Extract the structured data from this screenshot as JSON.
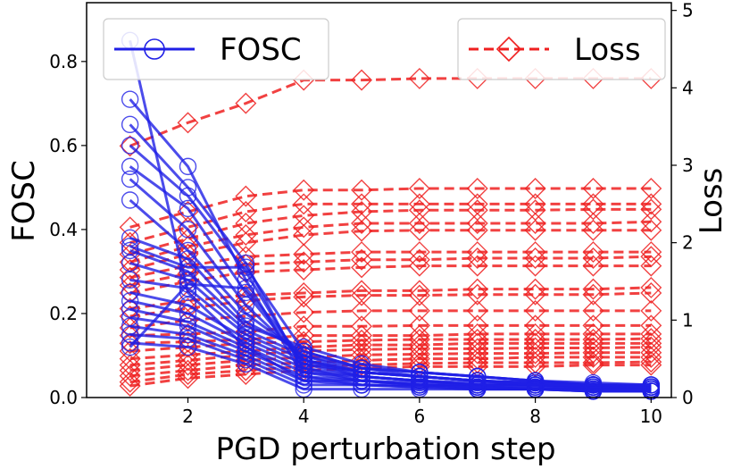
{
  "chart_data": {
    "type": "line",
    "xlabel": "PGD perturbation step",
    "ylabel_left": "FOSC",
    "ylabel_right": "Loss",
    "x": [
      1,
      2,
      3,
      4,
      5,
      6,
      7,
      8,
      9,
      10
    ],
    "x_ticks": [
      "2",
      "4",
      "6",
      "8",
      "10"
    ],
    "x_tick_values": [
      2,
      4,
      6,
      8,
      10
    ],
    "xlim": [
      0.25,
      10.35
    ],
    "ylim_left": [
      0,
      0.94
    ],
    "ylim_right": [
      0,
      5.1
    ],
    "y_ticks_left": [
      "0.0",
      "0.2",
      "0.4",
      "0.6",
      "0.8"
    ],
    "y_tick_values_left": [
      0,
      0.2,
      0.4,
      0.6,
      0.8
    ],
    "y_ticks_right": [
      "0",
      "1",
      "2",
      "3",
      "4",
      "5"
    ],
    "y_tick_values_right": [
      0,
      1,
      2,
      3,
      4,
      5
    ],
    "colors": {
      "fosc": "#1f1fe6",
      "loss": "#ef2020"
    },
    "legend": [
      {
        "label": "FOSC",
        "style": "solid line with circle markers",
        "position": "top-left"
      },
      {
        "label": "Loss",
        "style": "dashed line with diamond markers",
        "position": "top-right"
      }
    ],
    "fosc_series": [
      [
        0.85,
        0.25,
        0.12,
        0.04,
        0.03,
        0.025,
        0.02,
        0.02,
        0.015,
        0.015
      ],
      [
        0.71,
        0.55,
        0.28,
        0.05,
        0.03,
        0.025,
        0.02,
        0.02,
        0.015,
        0.015
      ],
      [
        0.65,
        0.5,
        0.32,
        0.06,
        0.04,
        0.03,
        0.025,
        0.02,
        0.02,
        0.02
      ],
      [
        0.6,
        0.48,
        0.3,
        0.07,
        0.04,
        0.03,
        0.025,
        0.02,
        0.02,
        0.02
      ],
      [
        0.55,
        0.45,
        0.25,
        0.08,
        0.05,
        0.04,
        0.03,
        0.03,
        0.02,
        0.02
      ],
      [
        0.52,
        0.4,
        0.22,
        0.09,
        0.05,
        0.04,
        0.03,
        0.03,
        0.025,
        0.02
      ],
      [
        0.47,
        0.35,
        0.2,
        0.1,
        0.06,
        0.05,
        0.04,
        0.03,
        0.025,
        0.025
      ],
      [
        0.38,
        0.33,
        0.18,
        0.11,
        0.07,
        0.05,
        0.04,
        0.035,
        0.03,
        0.025
      ],
      [
        0.35,
        0.3,
        0.17,
        0.12,
        0.08,
        0.06,
        0.05,
        0.04,
        0.03,
        0.03
      ],
      [
        0.32,
        0.28,
        0.16,
        0.1,
        0.07,
        0.06,
        0.05,
        0.04,
        0.03,
        0.03
      ],
      [
        0.28,
        0.26,
        0.15,
        0.09,
        0.06,
        0.05,
        0.04,
        0.035,
        0.03,
        0.025
      ],
      [
        0.25,
        0.22,
        0.14,
        0.08,
        0.06,
        0.05,
        0.04,
        0.035,
        0.03,
        0.025
      ],
      [
        0.23,
        0.2,
        0.13,
        0.07,
        0.05,
        0.04,
        0.035,
        0.03,
        0.025,
        0.02
      ],
      [
        0.21,
        0.18,
        0.12,
        0.06,
        0.05,
        0.04,
        0.03,
        0.03,
        0.025,
        0.02
      ],
      [
        0.19,
        0.17,
        0.11,
        0.05,
        0.04,
        0.035,
        0.03,
        0.025,
        0.02,
        0.02
      ],
      [
        0.17,
        0.15,
        0.1,
        0.04,
        0.04,
        0.03,
        0.03,
        0.025,
        0.02,
        0.02
      ],
      [
        0.15,
        0.14,
        0.09,
        0.03,
        0.03,
        0.03,
        0.025,
        0.02,
        0.02,
        0.015
      ],
      [
        0.13,
        0.12,
        0.08,
        0.02,
        0.02,
        0.02,
        0.02,
        0.02,
        0.015,
        0.015
      ],
      [
        0.12,
        0.27,
        0.26,
        0.09,
        0.06,
        0.05,
        0.04,
        0.03,
        0.03,
        0.025
      ],
      [
        0.36,
        0.31,
        0.31,
        0.11,
        0.07,
        0.06,
        0.05,
        0.04,
        0.035,
        0.03
      ]
    ],
    "loss_series": [
      [
        3.25,
        3.55,
        3.8,
        4.1,
        4.1,
        4.12,
        4.12,
        4.12,
        4.12,
        4.12
      ],
      [
        2.2,
        2.4,
        2.6,
        2.68,
        2.68,
        2.7,
        2.7,
        2.7,
        2.7,
        2.7
      ],
      [
        2.0,
        2.2,
        2.4,
        2.5,
        2.5,
        2.5,
        2.5,
        2.5,
        2.5,
        2.5
      ],
      [
        1.85,
        2.05,
        2.25,
        2.35,
        2.4,
        2.42,
        2.42,
        2.42,
        2.43,
        2.43
      ],
      [
        1.75,
        1.95,
        2.1,
        2.2,
        2.25,
        2.25,
        2.25,
        2.25,
        2.25,
        2.27
      ],
      [
        1.65,
        1.85,
        2.0,
        2.1,
        2.15,
        2.16,
        2.16,
        2.16,
        2.16,
        2.16
      ],
      [
        1.55,
        1.7,
        1.82,
        1.85,
        1.88,
        1.88,
        1.88,
        1.88,
        1.88,
        1.88
      ],
      [
        1.45,
        1.6,
        1.72,
        1.75,
        1.78,
        1.78,
        1.8,
        1.8,
        1.8,
        1.82
      ],
      [
        1.35,
        1.5,
        1.62,
        1.65,
        1.68,
        1.7,
        1.7,
        1.7,
        1.7,
        1.7
      ],
      [
        1.15,
        1.25,
        1.32,
        1.35,
        1.38,
        1.38,
        1.4,
        1.4,
        1.4,
        1.42
      ],
      [
        1.05,
        1.15,
        1.25,
        1.3,
        1.32,
        1.32,
        1.33,
        1.33,
        1.33,
        1.35
      ],
      [
        0.9,
        1.0,
        1.05,
        1.1,
        1.12,
        1.12,
        1.12,
        1.12,
        1.12,
        1.12
      ],
      [
        0.8,
        0.82,
        0.85,
        0.92,
        0.92,
        0.93,
        0.93,
        0.93,
        0.93,
        0.93
      ],
      [
        0.7,
        0.72,
        0.75,
        0.8,
        0.8,
        0.8,
        0.82,
        0.82,
        0.82,
        0.82
      ],
      [
        0.6,
        0.65,
        0.7,
        0.72,
        0.74,
        0.75,
        0.75,
        0.75,
        0.75,
        0.76
      ],
      [
        0.5,
        0.55,
        0.6,
        0.65,
        0.68,
        0.68,
        0.7,
        0.7,
        0.7,
        0.7
      ],
      [
        0.42,
        0.48,
        0.55,
        0.6,
        0.62,
        0.63,
        0.63,
        0.64,
        0.64,
        0.65
      ],
      [
        0.35,
        0.42,
        0.48,
        0.52,
        0.55,
        0.56,
        0.57,
        0.57,
        0.58,
        0.58
      ],
      [
        0.28,
        0.35,
        0.42,
        0.45,
        0.48,
        0.5,
        0.5,
        0.52,
        0.52,
        0.52
      ],
      [
        0.2,
        0.3,
        0.35,
        0.4,
        0.42,
        0.44,
        0.45,
        0.45,
        0.45,
        0.46
      ],
      [
        0.15,
        0.25,
        0.3,
        0.35,
        0.38,
        0.4,
        0.4,
        0.4,
        0.42,
        0.42
      ]
    ]
  }
}
